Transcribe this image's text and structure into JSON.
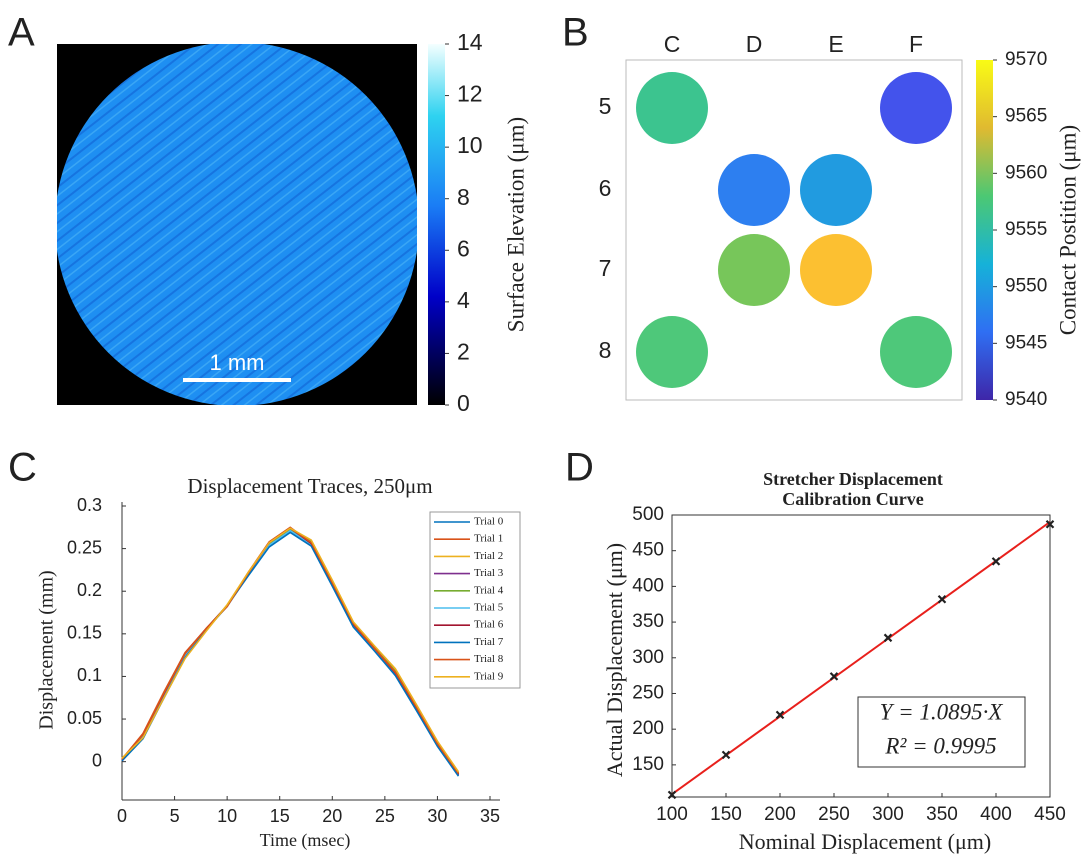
{
  "chart_data": [
    {
      "type": "image",
      "panel_label": "A",
      "scale_bar": "1 mm",
      "colorbar": {
        "label": "Surface Elevation (μm)",
        "lim": [
          0,
          14
        ],
        "ticks": [
          0,
          2,
          4,
          6,
          8,
          10,
          12,
          14
        ]
      }
    },
    {
      "type": "dot_grid",
      "panel_label": "B",
      "x_categories": [
        "C",
        "D",
        "E",
        "F"
      ],
      "y_categories": [
        "5",
        "6",
        "7",
        "8"
      ],
      "points": [
        {
          "x": "C",
          "y": "5",
          "value": 9555,
          "color": "#3cc48f"
        },
        {
          "x": "F",
          "y": "5",
          "value": 9544,
          "color": "#4353ec"
        },
        {
          "x": "D",
          "y": "6",
          "value": 9548,
          "color": "#2d7ff0"
        },
        {
          "x": "E",
          "y": "6",
          "value": 9551,
          "color": "#219be0"
        },
        {
          "x": "D",
          "y": "7",
          "value": 9559,
          "color": "#77c65a"
        },
        {
          "x": "E",
          "y": "7",
          "value": 9566,
          "color": "#fcc031"
        },
        {
          "x": "C",
          "y": "8",
          "value": 9557,
          "color": "#4ec87a"
        },
        {
          "x": "F",
          "y": "8",
          "value": 9557,
          "color": "#4ec87a"
        }
      ],
      "colorbar": {
        "label": "Contact Postition (μm)",
        "lim": [
          9540,
          9570
        ],
        "ticks": [
          9540,
          9545,
          9550,
          9555,
          9560,
          9565,
          9570
        ]
      }
    },
    {
      "type": "line",
      "panel_label": "C",
      "title": "Displacement Traces, 250μm",
      "x_label": "Time (msec)",
      "y_label": "Displacement (mm)",
      "xlim": [
        0,
        35
      ],
      "xticks": [
        0,
        5,
        10,
        15,
        20,
        25,
        30,
        35
      ],
      "ylim": [
        -0.045,
        0.3
      ],
      "yticks": [
        0,
        0.05,
        0.1,
        0.15,
        0.2,
        0.25,
        0.3
      ],
      "legend": "top-right",
      "x": [
        0,
        2,
        4,
        6,
        8,
        10,
        12,
        14,
        16,
        18,
        20,
        22,
        24,
        26,
        28,
        30,
        32
      ],
      "series": [
        {
          "name": "Trial 0",
          "color": "#0072bd",
          "values": [
            0.002,
            0.03,
            0.078,
            0.125,
            0.155,
            0.183,
            0.22,
            0.255,
            0.272,
            0.255,
            0.208,
            0.16,
            0.132,
            0.103,
            0.062,
            0.02,
            -0.015
          ]
        },
        {
          "name": "Trial 1",
          "color": "#d95319",
          "values": [
            0.003,
            0.033,
            0.082,
            0.128,
            0.156,
            0.182,
            0.222,
            0.258,
            0.275,
            0.257,
            0.21,
            0.162,
            0.133,
            0.105,
            0.064,
            0.022,
            -0.014
          ]
        },
        {
          "name": "Trial 2",
          "color": "#edb120",
          "values": [
            0.004,
            0.028,
            0.076,
            0.122,
            0.154,
            0.184,
            0.221,
            0.256,
            0.273,
            0.259,
            0.212,
            0.163,
            0.135,
            0.108,
            0.066,
            0.023,
            -0.013
          ]
        },
        {
          "name": "Trial 3",
          "color": "#7e2f8e",
          "values": [
            0.001,
            0.029,
            0.077,
            0.124,
            0.155,
            0.183,
            0.219,
            0.253,
            0.27,
            0.254,
            0.207,
            0.159,
            0.131,
            0.102,
            0.061,
            0.019,
            -0.016
          ]
        },
        {
          "name": "Trial 4",
          "color": "#77ac30",
          "values": [
            0.003,
            0.031,
            0.079,
            0.126,
            0.156,
            0.183,
            0.22,
            0.256,
            0.273,
            0.258,
            0.211,
            0.162,
            0.134,
            0.106,
            0.065,
            0.022,
            -0.014
          ]
        },
        {
          "name": "Trial 5",
          "color": "#4dbeee",
          "values": [
            0.002,
            0.03,
            0.078,
            0.125,
            0.155,
            0.182,
            0.219,
            0.254,
            0.271,
            0.255,
            0.208,
            0.16,
            0.132,
            0.103,
            0.062,
            0.02,
            -0.015
          ]
        },
        {
          "name": "Trial 6",
          "color": "#a2142f",
          "values": [
            0.002,
            0.032,
            0.08,
            0.127,
            0.156,
            0.183,
            0.221,
            0.257,
            0.274,
            0.256,
            0.209,
            0.161,
            0.133,
            0.104,
            0.063,
            0.021,
            -0.015
          ]
        },
        {
          "name": "Trial 7",
          "color": "#0072bd",
          "values": [
            0.001,
            0.027,
            0.075,
            0.122,
            0.154,
            0.183,
            0.218,
            0.252,
            0.269,
            0.253,
            0.206,
            0.158,
            0.13,
            0.101,
            0.06,
            0.018,
            -0.017
          ]
        },
        {
          "name": "Trial 8",
          "color": "#d95319",
          "values": [
            0.003,
            0.032,
            0.081,
            0.127,
            0.156,
            0.182,
            0.221,
            0.257,
            0.274,
            0.257,
            0.21,
            0.162,
            0.133,
            0.105,
            0.064,
            0.021,
            -0.014
          ]
        },
        {
          "name": "Trial 9",
          "color": "#edb120",
          "values": [
            0.004,
            0.028,
            0.075,
            0.121,
            0.153,
            0.184,
            0.222,
            0.257,
            0.274,
            0.26,
            0.213,
            0.164,
            0.136,
            0.109,
            0.067,
            0.024,
            -0.012
          ]
        }
      ]
    },
    {
      "type": "scatter",
      "panel_label": "D",
      "title": [
        "Stretcher Displacement",
        "Calibration Curve"
      ],
      "x_label": "Nominal Displacement (μm)",
      "y_label": "Actual Displacement (μm)",
      "xlim": [
        100,
        450
      ],
      "xticks": [
        100,
        150,
        200,
        250,
        300,
        350,
        400,
        450
      ],
      "ylim": [
        105,
        500
      ],
      "yticks": [
        150,
        200,
        250,
        300,
        350,
        400,
        450,
        500
      ],
      "x": [
        100,
        150,
        200,
        250,
        300,
        350,
        400,
        450
      ],
      "values": [
        108,
        164,
        220,
        274,
        328,
        382,
        435,
        487
      ],
      "color": "#222222",
      "fit": {
        "color": "#e8201c",
        "x": [
          100,
          450
        ],
        "values": [
          108.95,
          490.28
        ]
      },
      "annotations": [
        "Y = 1.0895·X",
        "R² = 0.9995"
      ]
    }
  ]
}
